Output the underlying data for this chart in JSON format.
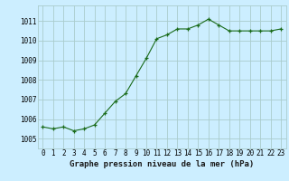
{
  "x": [
    0,
    1,
    2,
    3,
    4,
    5,
    6,
    7,
    8,
    9,
    10,
    11,
    12,
    13,
    14,
    15,
    16,
    17,
    18,
    19,
    20,
    21,
    22,
    23
  ],
  "y": [
    1005.6,
    1005.5,
    1005.6,
    1005.4,
    1005.5,
    1005.7,
    1006.3,
    1006.9,
    1007.3,
    1008.2,
    1009.1,
    1010.1,
    1010.3,
    1010.6,
    1010.6,
    1010.8,
    1011.1,
    1010.8,
    1010.5,
    1010.5,
    1010.5,
    1010.5,
    1010.5,
    1010.6
  ],
  "line_color": "#1a6b1a",
  "marker_color": "#1a6b1a",
  "bg_color": "#cceeff",
  "grid_color": "#aacccc",
  "xlabel": "Graphe pression niveau de la mer (hPa)",
  "ylim_min": 1004.5,
  "ylim_max": 1011.8,
  "yticks": [
    1005,
    1006,
    1007,
    1008,
    1009,
    1010,
    1011
  ],
  "xticks": [
    0,
    1,
    2,
    3,
    4,
    5,
    6,
    7,
    8,
    9,
    10,
    11,
    12,
    13,
    14,
    15,
    16,
    17,
    18,
    19,
    20,
    21,
    22,
    23
  ],
  "xlabel_fontsize": 6.5,
  "tick_fontsize": 5.5
}
